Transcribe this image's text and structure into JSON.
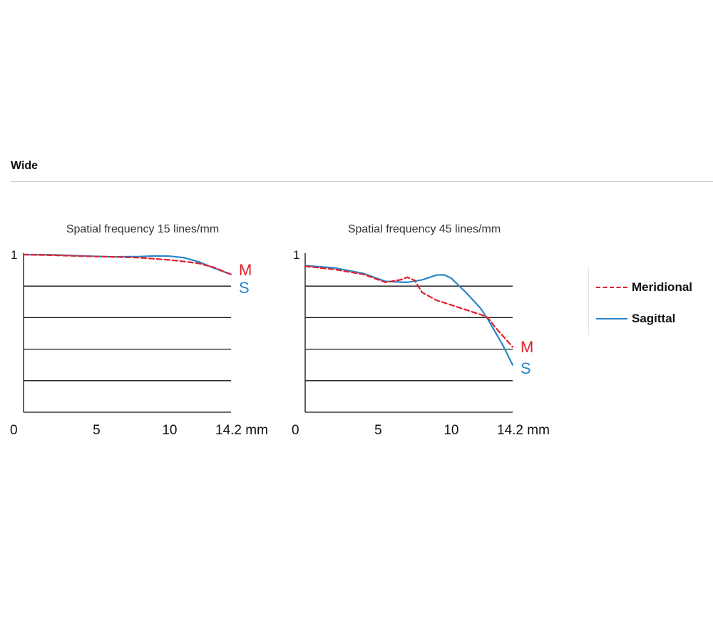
{
  "section": {
    "title": "Wide"
  },
  "legend": [
    {
      "label": "Meridional",
      "style": "dashed",
      "color": "#e0202f"
    },
    {
      "label": "Sagittal",
      "style": "solid",
      "color": "#2a86c8"
    }
  ],
  "chart_data": [
    {
      "type": "line",
      "title": "Spatial frequency 15 lines/mm",
      "xlim": [
        0,
        14.2
      ],
      "ylim": [
        0.5,
        1.0
      ],
      "x_ticks": [
        {
          "value": 0,
          "label": "0"
        },
        {
          "value": 5,
          "label": "5"
        },
        {
          "value": 10,
          "label": "10"
        },
        {
          "value": 14.2,
          "label": "14.2 mm"
        }
      ],
      "y_ticks": [
        {
          "value": 1,
          "label": "1"
        }
      ],
      "gridlines_y": [
        0.6,
        0.7,
        0.8,
        0.9
      ],
      "series": [
        {
          "name": "Meridional",
          "end_label": "M",
          "color": "#e0202f",
          "dash": true,
          "x": [
            0,
            2,
            4,
            6,
            8,
            10,
            11,
            12,
            13,
            14.2
          ],
          "y": [
            1.0,
            0.998,
            0.995,
            0.993,
            0.99,
            0.983,
            0.978,
            0.972,
            0.96,
            0.937
          ]
        },
        {
          "name": "Sagittal",
          "end_label": "S",
          "color": "#2a86c8",
          "dash": false,
          "x": [
            0,
            2,
            4,
            6,
            8,
            9,
            10,
            11,
            12,
            13,
            14.2
          ],
          "y": [
            1.0,
            0.999,
            0.996,
            0.993,
            0.994,
            0.996,
            0.995,
            0.99,
            0.977,
            0.958,
            0.937
          ]
        }
      ]
    },
    {
      "type": "line",
      "title": "Spatial frequency 45 lines/mm",
      "xlim": [
        0,
        14.2
      ],
      "ylim": [
        0.5,
        1.0
      ],
      "x_ticks": [
        {
          "value": 0,
          "label": "0"
        },
        {
          "value": 5,
          "label": "5"
        },
        {
          "value": 10,
          "label": "10"
        },
        {
          "value": 14.2,
          "label": "14.2 mm"
        }
      ],
      "y_ticks": [
        {
          "value": 1,
          "label": "1"
        }
      ],
      "gridlines_y": [
        0.6,
        0.7,
        0.8,
        0.9
      ],
      "series": [
        {
          "name": "Meridional",
          "end_label": "M",
          "color": "#e0202f",
          "dash": true,
          "x": [
            0,
            2,
            4,
            5.5,
            6.5,
            7,
            7.5,
            8,
            9,
            10,
            11,
            12,
            12.5,
            13,
            14.2
          ],
          "y": [
            0.963,
            0.953,
            0.937,
            0.912,
            0.92,
            0.928,
            0.918,
            0.88,
            0.855,
            0.84,
            0.825,
            0.81,
            0.8,
            0.77,
            0.707
          ]
        },
        {
          "name": "Sagittal",
          "end_label": "S",
          "color": "#2a86c8",
          "dash": false,
          "x": [
            0,
            2,
            4,
            5.5,
            7,
            8,
            9,
            9.5,
            10,
            11,
            12,
            12.5,
            13,
            13.5,
            14.2
          ],
          "y": [
            0.965,
            0.958,
            0.94,
            0.915,
            0.912,
            0.92,
            0.935,
            0.936,
            0.925,
            0.88,
            0.83,
            0.795,
            0.755,
            0.715,
            0.65
          ]
        }
      ]
    }
  ]
}
